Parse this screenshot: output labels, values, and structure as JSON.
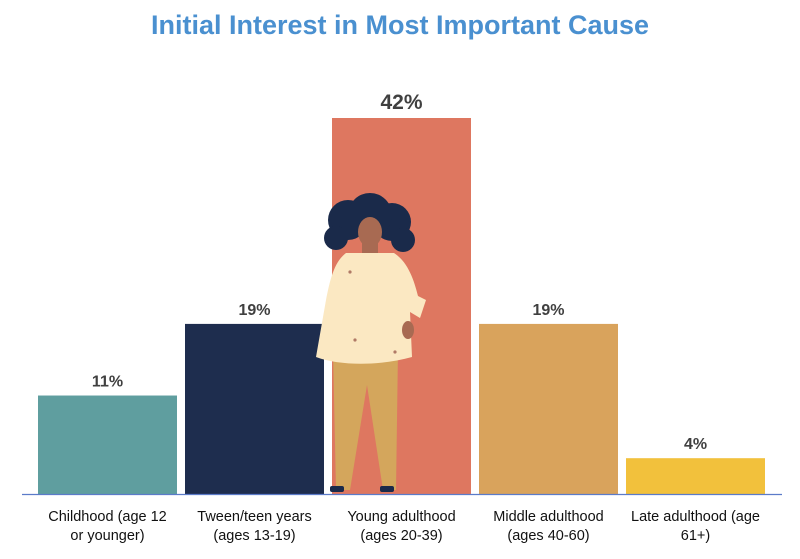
{
  "chart_data": {
    "type": "bar",
    "title": "Initial Interest in Most Important Cause",
    "categories": [
      [
        "Childhood (age 12",
        "or younger)"
      ],
      [
        "Tween/teen years",
        "(ages 13-19)"
      ],
      [
        "Young adulthood",
        "(ages 20-39)"
      ],
      [
        "Middle adulthood",
        "(ages 40-60)"
      ],
      [
        "Late adulthood (age",
        "61+)"
      ]
    ],
    "values": [
      11,
      19,
      42,
      19,
      4
    ],
    "value_labels": [
      "11%",
      "19%",
      "42%",
      "19%",
      "4%"
    ],
    "colors": [
      "#5f9e9f",
      "#1e2d4e",
      "#de7760",
      "#d9a35c",
      "#f2c13c"
    ],
    "ylim": [
      0,
      42
    ],
    "grid": false,
    "legend": "none",
    "axis_color": "#5b7bc9"
  }
}
